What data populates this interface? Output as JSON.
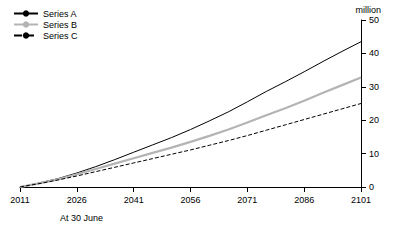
{
  "chart_data": {
    "type": "line",
    "x_label": "At 30 June",
    "y_label": "million",
    "x": [
      2011,
      2016,
      2021,
      2026,
      2031,
      2036,
      2041,
      2046,
      2051,
      2056,
      2061,
      2066,
      2071,
      2076,
      2081,
      2086,
      2091,
      2096,
      2101
    ],
    "series": [
      {
        "name": "Series A",
        "color": "#000000",
        "line_style": "solid",
        "values": [
          0,
          1.2,
          2.5,
          4.2,
          6.1,
          8.2,
          10.4,
          12.6,
          14.8,
          17.2,
          19.8,
          22.5,
          25.5,
          28.6,
          31.5,
          34.5,
          37.6,
          40.6,
          43.5
        ]
      },
      {
        "name": "Series B",
        "color": "#b4b4b4",
        "line_style": "solid",
        "values": [
          0,
          1.1,
          2.3,
          3.8,
          5.4,
          7.0,
          8.6,
          10.2,
          11.8,
          13.5,
          15.3,
          17.2,
          19.3,
          21.5,
          23.6,
          25.8,
          28.2,
          30.5,
          32.8
        ]
      },
      {
        "name": "Series C",
        "color": "#000000",
        "line_style": "dashed",
        "values": [
          0,
          1.0,
          2.1,
          3.3,
          4.6,
          5.9,
          7.2,
          8.5,
          9.8,
          11.1,
          12.5,
          13.9,
          15.4,
          17.0,
          18.6,
          20.2,
          21.8,
          23.4,
          25.0
        ]
      }
    ],
    "xlim": [
      2011,
      2101
    ],
    "xticks": [
      2011,
      2026,
      2041,
      2056,
      2071,
      2086,
      2101
    ],
    "ylim": [
      0,
      50
    ],
    "yticks": [
      0,
      10,
      20,
      30,
      40,
      50
    ],
    "grid": false,
    "legend": "top-left",
    "marker": "none"
  }
}
